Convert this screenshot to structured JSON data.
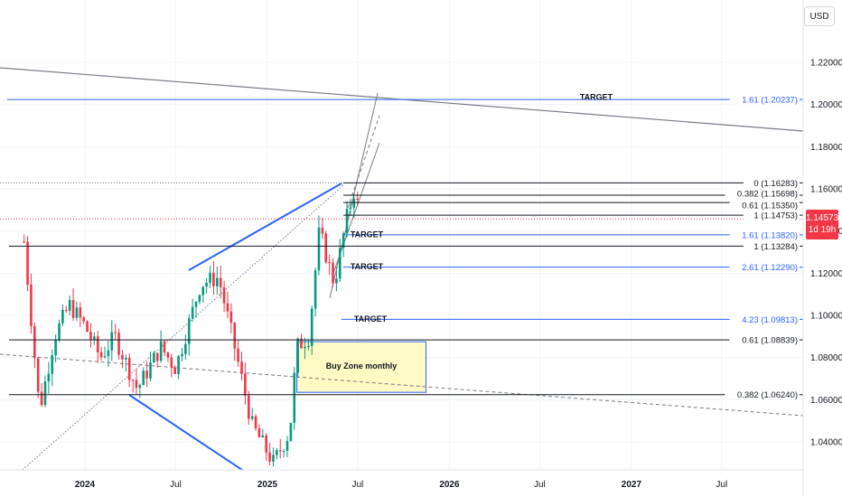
{
  "currency": "USD",
  "last_price": {
    "value": "1.14573",
    "countdown": "1d 19h"
  },
  "chart_data": {
    "type": "candlestick",
    "symbol_quote_currency": "USD",
    "y_axis": {
      "range": [
        1.025,
        1.235
      ],
      "ticks": [
        "1.04000",
        "1.06000",
        "1.08000",
        "1.10000",
        "1.12000",
        "1.14000",
        "1.16000",
        "1.18000",
        "1.20000",
        "1.22000"
      ],
      "position": "right"
    },
    "x_axis": {
      "range": [
        "2023-09",
        "2027-10"
      ],
      "ticks": [
        "2024",
        "Jul",
        "2025",
        "Jul",
        "2026",
        "Jul",
        "2027",
        "Jul"
      ]
    },
    "series": [
      {
        "type": "weekly_candles",
        "up_color": "#089981",
        "down_color": "#f23645",
        "anchors": [
          [
            "2023-09-01",
            1.135
          ],
          [
            "2023-10-02",
            1.055
          ],
          [
            "2023-11-01",
            1.09
          ],
          [
            "2023-12-01",
            1.105
          ],
          [
            "2024-01-01",
            1.095
          ],
          [
            "2024-02-01",
            1.08
          ],
          [
            "2024-03-01",
            1.09
          ],
          [
            "2024-04-15",
            1.065
          ],
          [
            "2024-06-01",
            1.085
          ],
          [
            "2024-07-01",
            1.075
          ],
          [
            "2024-08-20",
            1.115
          ],
          [
            "2024-09-25",
            1.118
          ],
          [
            "2024-11-01",
            1.08
          ],
          [
            "2024-12-01",
            1.048
          ],
          [
            "2025-01-13",
            1.03
          ],
          [
            "2025-02-15",
            1.045
          ],
          [
            "2025-03-01",
            1.085
          ],
          [
            "2025-03-25",
            1.09
          ],
          [
            "2025-04-15",
            1.14
          ],
          [
            "2025-05-15",
            1.115
          ],
          [
            "2025-06-08",
            1.145
          ],
          [
            "2025-06-25",
            1.16
          ],
          [
            "2025-07-06",
            1.14573
          ]
        ]
      }
    ],
    "levels": [
      {
        "label": "1.61 (1.20237)",
        "value": 1.20237,
        "color": "#2962ff",
        "annotation": "TARGET"
      },
      {
        "label": "0 (1.16283)",
        "value": 1.16283,
        "color": "#131722"
      },
      {
        "label": "0.382 (1.15698)",
        "value": 1.15698,
        "color": "#131722"
      },
      {
        "label": "0.61 (1.15350)",
        "value": 1.1535,
        "color": "#131722"
      },
      {
        "label": "1 (1.14753)",
        "value": 1.14753,
        "color": "#131722"
      },
      {
        "label": "1.61 (1.13820)",
        "value": 1.1382,
        "color": "#2962ff",
        "annotation": "TARGET"
      },
      {
        "label": "1 (1.13284)",
        "value": 1.13284,
        "color": "#131722"
      },
      {
        "label": "2.61 (1.12290)",
        "value": 1.1229,
        "color": "#2962ff",
        "annotation": "TARGET"
      },
      {
        "label": "4.23 (1.09813)",
        "value": 1.09813,
        "color": "#2962ff",
        "annotation": "TARGET"
      },
      {
        "label": "0.61 (1.08839)",
        "value": 1.08839,
        "color": "#131722"
      },
      {
        "label": "0.382 (1.06240)",
        "value": 1.0624,
        "color": "#131722"
      }
    ],
    "zones": [
      {
        "label": "Buy Zone monthly",
        "from_date": "2025-03-01",
        "to_date": "2025-11-15",
        "low": 1.0635,
        "high": 1.0875,
        "color": "#fff9c4"
      }
    ]
  }
}
